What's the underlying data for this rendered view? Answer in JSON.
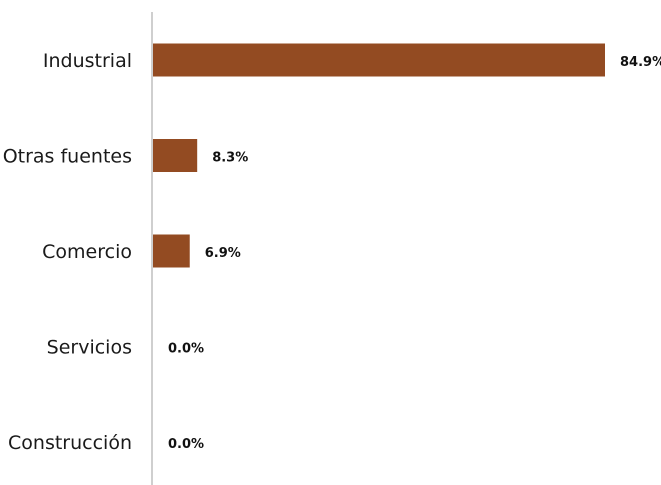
{
  "chart_data": {
    "type": "bar",
    "orientation": "horizontal",
    "categories": [
      "Industrial",
      "Otras fuentes",
      "Comercio",
      "Servicios",
      "Construcción"
    ],
    "values": [
      84.9,
      8.3,
      6.9,
      0.0,
      0.0
    ],
    "value_labels": [
      "84.9%",
      "8.3%",
      "6.9%",
      "0.0%",
      "0.0%"
    ],
    "bar_color": "#934b22",
    "axis_color": "#bfbfbf",
    "grid": false,
    "legend": "none"
  }
}
